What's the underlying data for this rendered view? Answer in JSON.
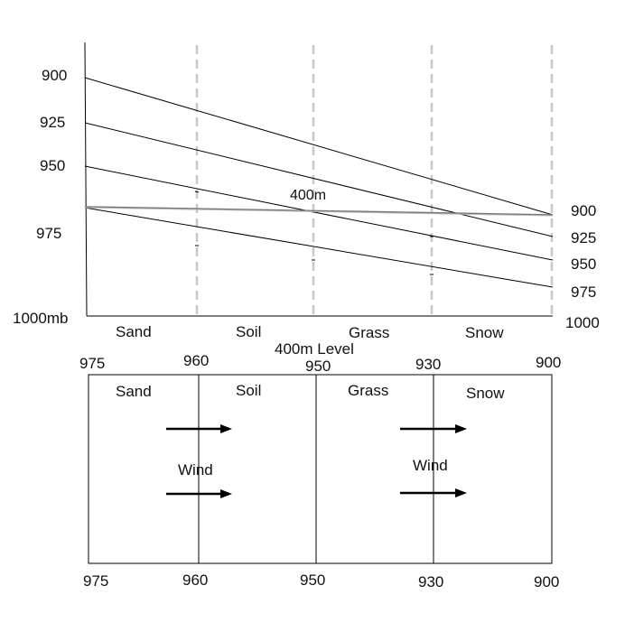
{
  "cross_section": {
    "left_pressure_labels": [
      "900",
      "925",
      "950",
      "975"
    ],
    "bottom_left_label": "1000mb",
    "right_pressure_labels": [
      "900",
      "925",
      "950",
      "975"
    ],
    "bottom_right_label": "1000",
    "height_label": "400m",
    "surface_types": [
      "Sand",
      "Soil",
      "Grass",
      "Snow"
    ]
  },
  "level_map": {
    "title": "400m Level",
    "top_pressures": [
      "975",
      "960",
      "950",
      "930",
      "900"
    ],
    "bottom_pressures": [
      "975",
      "960",
      "950",
      "930",
      "900"
    ],
    "region_labels": [
      "Sand",
      "Soil",
      "Grass",
      "Snow"
    ],
    "wind_labels": [
      "Wind",
      "Wind"
    ]
  }
}
